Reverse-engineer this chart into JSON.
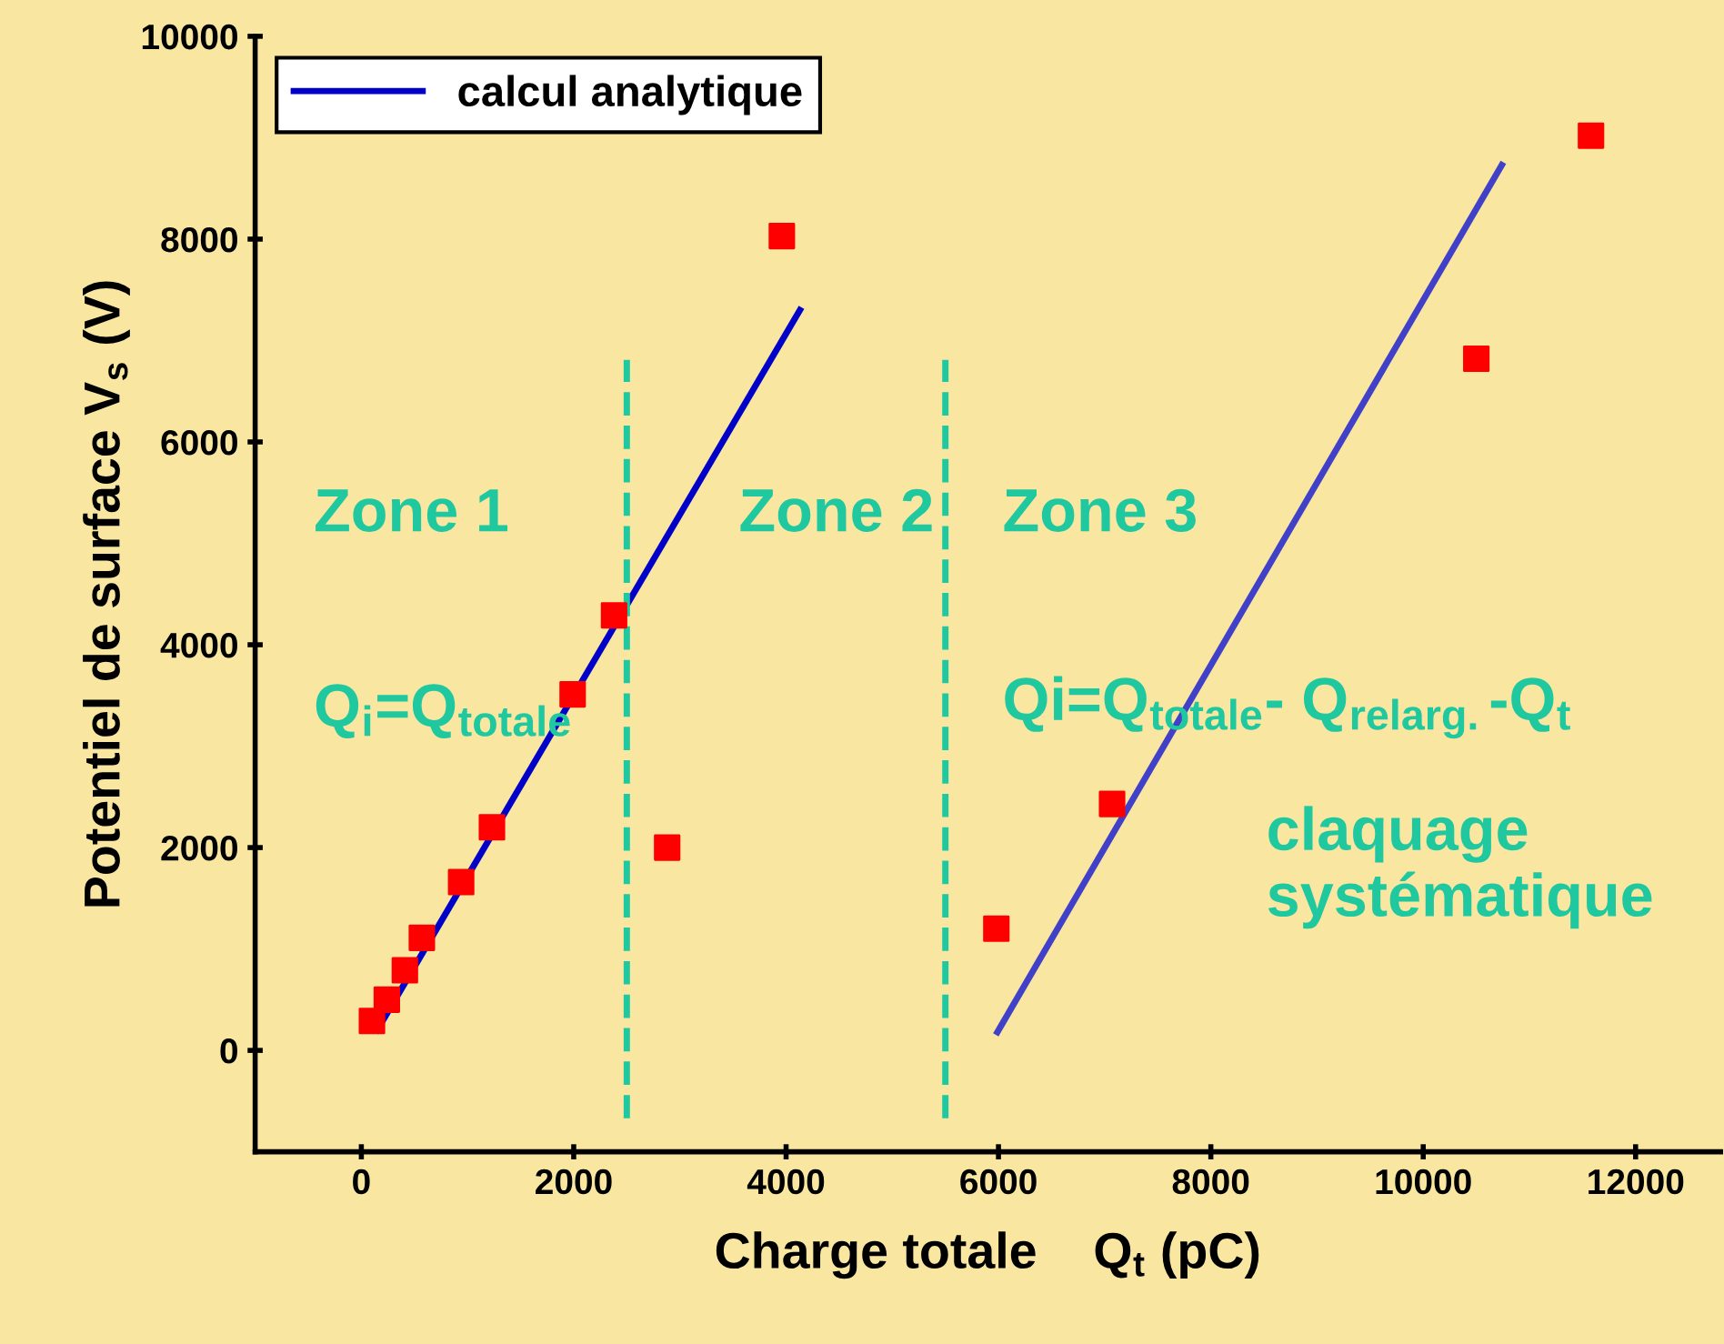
{
  "chart_data": {
    "type": "scatter",
    "xlabel": "Charge totale    Q$_{t}$ (pC)",
    "ylabel": "Potentiel de surface V$_{s}$ (V)",
    "xlim": [
      -1000,
      12800
    ],
    "ylim": [
      -1000,
      10000
    ],
    "xticks": [
      0,
      2000,
      4000,
      6000,
      8000,
      10000,
      12000
    ],
    "yticks": [
      0,
      2000,
      4000,
      6000,
      8000,
      10000
    ],
    "grid": false,
    "legend": "top left",
    "series": [
      {
        "color": "#ff0000",
        "marker": "square",
        "x": [
          100,
          240,
          410,
          570,
          940,
          1230,
          1990,
          2380,
          2880,
          3960,
          5980,
          7070,
          10500,
          11580
        ],
        "values": [
          290,
          500,
          790,
          1110,
          1660,
          2200,
          3510,
          4290,
          2000,
          8030,
          1200,
          2430,
          6820,
          9020
        ]
      },
      {
        "type": "line",
        "name": "calcul analytique",
        "color": "#0000c8",
        "x": [
          150,
          4130
        ],
        "values": [
          200,
          7300
        ]
      },
      {
        "type": "line",
        "color": "#4040c8",
        "x": [
          5990,
          10740
        ],
        "values": [
          180,
          8730
        ]
      }
    ],
    "ref_lines": [
      {
        "axis": "x",
        "value": 2500,
        "color": "#20c8a0",
        "line_style": "dashed"
      },
      {
        "axis": "x",
        "value": 5500,
        "color": "#20c8a0",
        "line_style": "dashed"
      }
    ],
    "annotations": [
      "Zone 1",
      "Zone 2",
      "Zone 3",
      "Q$_{i}$=Q$_{totale}$",
      "Qi=Q$_{totale}$- Q$_{relarg.}$-Q$_{t}$",
      "claquage\nsystématique"
    ]
  }
}
